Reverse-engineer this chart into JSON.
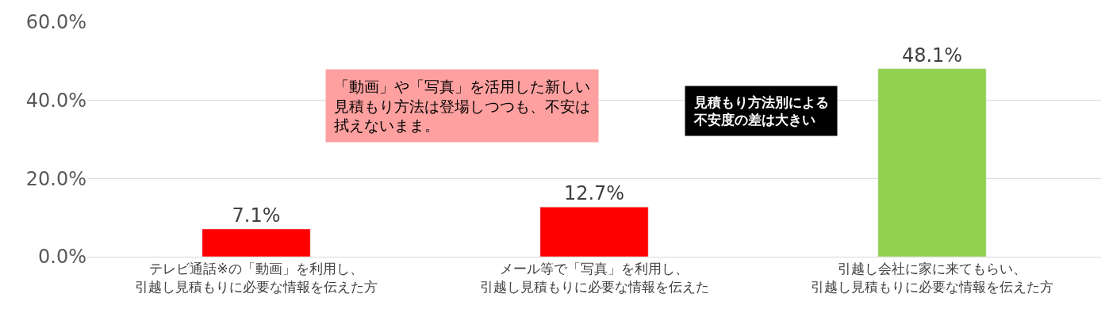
{
  "chart_data": {
    "type": "bar",
    "categories": [
      "テレビ通話※の「動画」を利用し、引越し見積もりに必要な情報を伝えた方",
      "メール等で「写真」を利用し、引越し見積もりに必要な情報を伝えた",
      "引越し会社に家に来てもらい、引越し見積もりに必要な情報を伝えた方"
    ],
    "values": [
      7.1,
      12.7,
      48.1
    ],
    "colors": [
      "#ff0000",
      "#ff0000",
      "#92d050"
    ],
    "value_labels": [
      "7.1%",
      "12.7%",
      "48.1%"
    ],
    "ylim": [
      0,
      60
    ],
    "yticks": [
      {
        "value": 0,
        "label": "0.0%"
      },
      {
        "value": 20,
        "label": "20.0%"
      },
      {
        "value": 40,
        "label": "40.0%"
      },
      {
        "value": 60,
        "label": "60.0%"
      }
    ],
    "grid": "y",
    "annotations": [
      "「動画」や「写真」を活用した新しい見積もり方法は登場しつつも、不安は拭えないまま。",
      "見積もり方法別による不安度の差は大きい"
    ]
  }
}
